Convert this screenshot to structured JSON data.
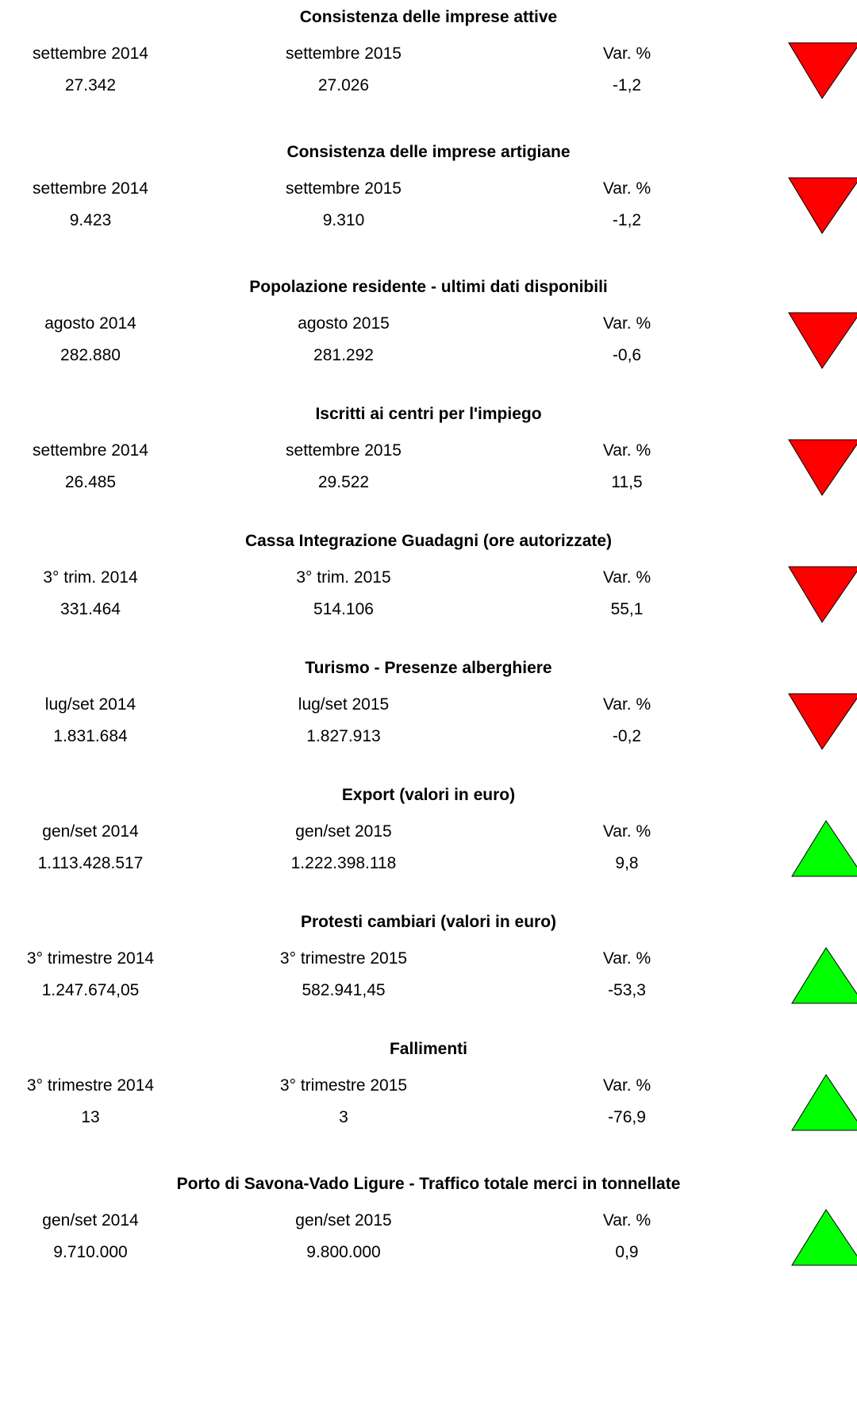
{
  "sections": [
    {
      "title": "Consistenza delle imprese attive",
      "period1": "settembre 2014",
      "period2": "settembre 2015",
      "var_label": "Var. %",
      "value1": "27.342",
      "value2": "27.026",
      "var": "-1,2",
      "indicator": "down"
    },
    {
      "title": "Consistenza delle imprese artigiane",
      "period1": "settembre 2014",
      "period2": "settembre 2015",
      "var_label": "Var. %",
      "value1": "9.423",
      "value2": "9.310",
      "var": "-1,2",
      "indicator": "down"
    },
    {
      "title": "Popolazione residente - ultimi dati disponibili",
      "period1": "agosto 2014",
      "period2": "agosto 2015",
      "var_label": "Var. %",
      "value1": "282.880",
      "value2": "281.292",
      "var": "-0,6",
      "indicator": "down"
    },
    {
      "title": "Iscritti ai centri per l'impiego",
      "period1": "settembre 2014",
      "period2": "settembre 2015",
      "var_label": "Var. %",
      "value1": "26.485",
      "value2": "29.522",
      "var": "11,5",
      "indicator": "down"
    },
    {
      "title": "Cassa Integrazione Guadagni (ore autorizzate)",
      "period1": "3° trim. 2014",
      "period2": "3° trim. 2015",
      "var_label": "Var. %",
      "value1": "331.464",
      "value2": "514.106",
      "var": "55,1",
      "indicator": "down"
    },
    {
      "title": "Turismo - Presenze alberghiere",
      "period1": "lug/set 2014",
      "period2": "lug/set 2015",
      "var_label": "Var. %",
      "value1": "1.831.684",
      "value2": "1.827.913",
      "var": "-0,2",
      "indicator": "down"
    },
    {
      "title": "Export (valori in euro)",
      "period1": "gen/set 2014",
      "period2": "gen/set 2015",
      "var_label": "Var. %",
      "value1": "1.113.428.517",
      "value2": "1.222.398.118",
      "var": "9,8",
      "indicator": "up"
    },
    {
      "title": "Protesti cambiari (valori in euro)",
      "period1": "3° trimestre 2014",
      "period2": "3° trimestre 2015",
      "var_label": "Var. %",
      "value1": "1.247.674,05",
      "value2": "582.941,45",
      "var": "-53,3",
      "indicator": "up"
    },
    {
      "title": "Fallimenti",
      "period1": "3° trimestre 2014",
      "period2": "3° trimestre 2015",
      "var_label": "Var. %",
      "value1": "13",
      "value2": "3",
      "var": "-76,9",
      "indicator": "up"
    },
    {
      "title": "Porto di Savona-Vado Ligure - Traffico totale merci in tonnellate",
      "period1": "gen/set 2014",
      "period2": "gen/set 2015",
      "var_label": "Var. %",
      "value1": "9.710.000",
      "value2": "9.800.000",
      "var": "0,9",
      "indicator": "up"
    }
  ]
}
